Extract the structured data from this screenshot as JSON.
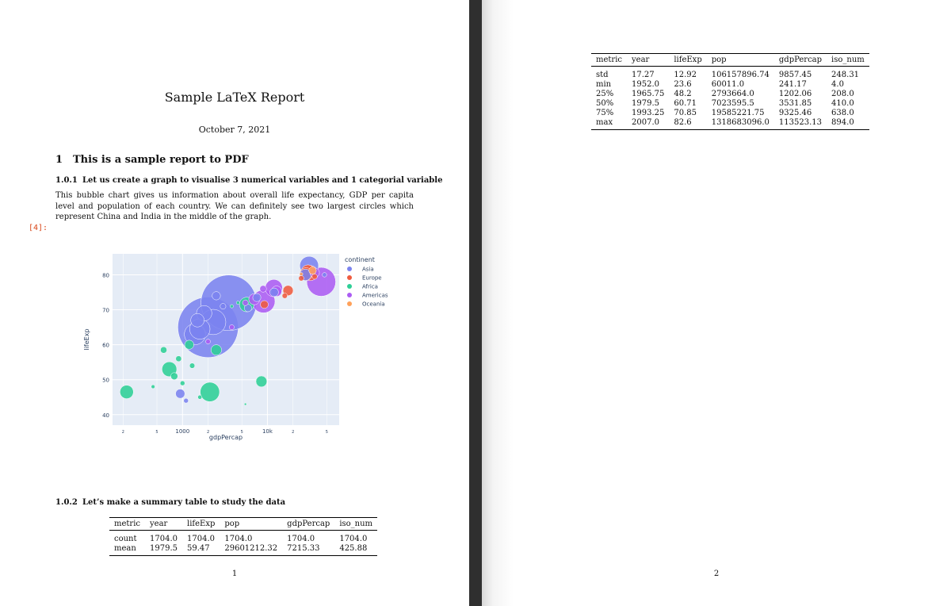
{
  "report": {
    "title": "Sample LaTeX Report",
    "date": "October 7, 2021",
    "section": {
      "number": "1",
      "title": "This is a sample report to PDF"
    },
    "subsection1": {
      "number": "1.0.1",
      "title": "Let us create a graph to visualise 3 numerical variables and 1 categorial variable"
    },
    "paragraph": "This bubble chart gives us information about overall life expectancy, GDP per capita level and population of each country. We can definitely see two largest circles which represent China and India in the middle of the graph.",
    "cell_prompt": "[4]:",
    "subsection2": {
      "number": "1.0.2",
      "title": "Let’s make a summary table to study the data"
    },
    "page1_number": "1",
    "page2_number": "2"
  },
  "table": {
    "headers": [
      "metric",
      "year",
      "lifeExp",
      "pop",
      "gdpPercap",
      "iso_num"
    ],
    "page1_rows": [
      [
        "count",
        "1704.0",
        "1704.0",
        "1704.0",
        "1704.0",
        "1704.0"
      ],
      [
        "mean",
        "1979.5",
        "59.47",
        "29601212.32",
        "7215.33",
        "425.88"
      ]
    ],
    "page2_rows": [
      [
        "std",
        "17.27",
        "12.92",
        "106157896.74",
        "9857.45",
        "248.31"
      ],
      [
        "min",
        "1952.0",
        "23.6",
        "60011.0",
        "241.17",
        "4.0"
      ],
      [
        "25%",
        "1965.75",
        "48.2",
        "2793664.0",
        "1202.06",
        "208.0"
      ],
      [
        "50%",
        "1979.5",
        "60.71",
        "7023595.5",
        "3531.85",
        "410.0"
      ],
      [
        "75%",
        "1993.25",
        "70.85",
        "19585221.75",
        "9325.46",
        "638.0"
      ],
      [
        "max",
        "2007.0",
        "82.6",
        "1318683096.0",
        "113523.13",
        "894.0"
      ]
    ]
  },
  "chart_data": {
    "type": "scatter",
    "title": "",
    "xlabel": "gdpPercap",
    "ylabel": "lifeExp",
    "x_scale": "log",
    "xlim": [
      150,
      70000
    ],
    "ylim": [
      37,
      86
    ],
    "x_tick_labels": [
      "2",
      "5",
      "1000",
      "2",
      "5",
      "10k",
      "2",
      "5"
    ],
    "x_tick_values": [
      200,
      500,
      1000,
      2000,
      5000,
      10000,
      20000,
      50000
    ],
    "y_tick_labels": [
      "40",
      "50",
      "60",
      "70",
      "80"
    ],
    "y_tick_values": [
      40,
      50,
      60,
      70,
      80
    ],
    "legend_title": "continent",
    "legend_position": "top-right",
    "colors": {
      "Asia": "#7b83ef",
      "Europe": "#ef5b3f",
      "Africa": "#2ecf96",
      "Americas": "#ac5cf3",
      "Oceania": "#ffa15a"
    },
    "series": [
      {
        "name": "Asia",
        "points": [
          {
            "x": 2000,
            "y": 65,
            "size": 1318
          },
          {
            "x": 3500,
            "y": 72,
            "size": 1110
          },
          {
            "x": 2300,
            "y": 66.5,
            "size": 230
          },
          {
            "x": 1600,
            "y": 64.5,
            "size": 150
          },
          {
            "x": 1400,
            "y": 63,
            "size": 160
          },
          {
            "x": 1500,
            "y": 67,
            "size": 65
          },
          {
            "x": 1800,
            "y": 69,
            "size": 85
          },
          {
            "x": 2500,
            "y": 74,
            "size": 25
          },
          {
            "x": 31000,
            "y": 82.6,
            "size": 127
          },
          {
            "x": 28000,
            "y": 80,
            "size": 48
          },
          {
            "x": 47000,
            "y": 80,
            "size": 7
          },
          {
            "x": 7500,
            "y": 73.5,
            "size": 24
          },
          {
            "x": 12000,
            "y": 75,
            "size": 27
          },
          {
            "x": 940,
            "y": 46,
            "size": 31
          },
          {
            "x": 1100,
            "y": 44,
            "size": 8
          },
          {
            "x": 5900,
            "y": 70.5,
            "size": 20
          },
          {
            "x": 3000,
            "y": 71,
            "size": 12
          }
        ]
      },
      {
        "name": "Europe",
        "points": [
          {
            "x": 32000,
            "y": 80.5,
            "size": 82
          },
          {
            "x": 30000,
            "y": 81,
            "size": 61
          },
          {
            "x": 28500,
            "y": 80.2,
            "size": 60
          },
          {
            "x": 36000,
            "y": 79.5,
            "size": 10
          },
          {
            "x": 17500,
            "y": 75.5,
            "size": 38
          },
          {
            "x": 9200,
            "y": 71.5,
            "size": 22
          },
          {
            "x": 25000,
            "y": 79,
            "size": 10
          },
          {
            "x": 16000,
            "y": 74,
            "size": 10
          }
        ]
      },
      {
        "name": "Africa",
        "points": [
          {
            "x": 2100,
            "y": 46.5,
            "size": 135
          },
          {
            "x": 220,
            "y": 46.5,
            "size": 65
          },
          {
            "x": 700,
            "y": 53,
            "size": 79
          },
          {
            "x": 2500,
            "y": 58.5,
            "size": 40
          },
          {
            "x": 5700,
            "y": 71.5,
            "size": 76
          },
          {
            "x": 8500,
            "y": 49.5,
            "size": 44
          },
          {
            "x": 1200,
            "y": 60,
            "size": 30
          },
          {
            "x": 900,
            "y": 56,
            "size": 12
          },
          {
            "x": 600,
            "y": 58.5,
            "size": 15
          },
          {
            "x": 800,
            "y": 51,
            "size": 18
          },
          {
            "x": 1000,
            "y": 49,
            "size": 8
          },
          {
            "x": 450,
            "y": 48,
            "size": 5
          },
          {
            "x": 1300,
            "y": 54,
            "size": 10
          },
          {
            "x": 1600,
            "y": 45,
            "size": 6
          },
          {
            "x": 5500,
            "y": 43,
            "size": 2
          },
          {
            "x": 4500,
            "y": 72,
            "size": 4
          },
          {
            "x": 3800,
            "y": 71,
            "size": 4
          }
        ]
      },
      {
        "name": "Americas",
        "points": [
          {
            "x": 43000,
            "y": 78,
            "size": 301
          },
          {
            "x": 9000,
            "y": 72.4,
            "size": 190
          },
          {
            "x": 11900,
            "y": 76.2,
            "size": 108
          },
          {
            "x": 12800,
            "y": 75.3,
            "size": 40
          },
          {
            "x": 36000,
            "y": 80.6,
            "size": 33
          },
          {
            "x": 7000,
            "y": 73,
            "size": 44
          },
          {
            "x": 8900,
            "y": 76,
            "size": 16
          },
          {
            "x": 2000,
            "y": 60.9,
            "size": 8
          },
          {
            "x": 5500,
            "y": 72,
            "size": 12
          },
          {
            "x": 3800,
            "y": 65,
            "size": 9
          }
        ]
      },
      {
        "name": "Oceania",
        "points": [
          {
            "x": 34000,
            "y": 81.2,
            "size": 20
          },
          {
            "x": 25000,
            "y": 80.2,
            "size": 4
          }
        ]
      }
    ]
  }
}
